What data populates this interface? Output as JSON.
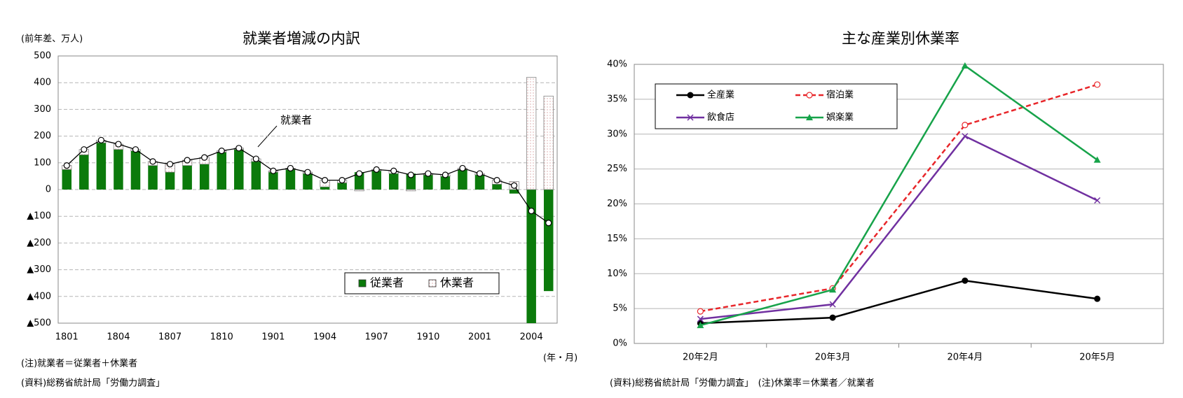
{
  "chart_data": [
    {
      "type": "bar",
      "title": "就業者増減の内訳",
      "ylabel": "(前年差、万人)",
      "xlabel": "(年・月)",
      "notes": [
        "(注)就業者＝従業者＋休業者",
        "(資料)総務省統計局「労働力調査」"
      ],
      "categories": [
        "1801",
        null,
        null,
        "1804",
        null,
        null,
        "1807",
        null,
        null,
        "1810",
        null,
        null,
        "1901",
        null,
        null,
        "1904",
        null,
        null,
        "1907",
        null,
        null,
        "1910",
        null,
        null,
        "2001",
        null,
        null,
        "2004",
        null
      ],
      "series": [
        {
          "name": "従業者",
          "color": "#0b7a0b",
          "values": [
            75,
            130,
            175,
            150,
            145,
            90,
            65,
            90,
            95,
            140,
            150,
            105,
            65,
            75,
            60,
            10,
            25,
            65,
            70,
            60,
            60,
            55,
            50,
            75,
            55,
            20,
            -15,
            -500,
            -380
          ]
        },
        {
          "name": "休業者",
          "color": "#ffffff",
          "pattern": "dotted",
          "values": [
            15,
            20,
            10,
            20,
            5,
            15,
            30,
            20,
            25,
            5,
            5,
            10,
            5,
            5,
            5,
            25,
            10,
            -5,
            5,
            10,
            -5,
            5,
            5,
            5,
            5,
            15,
            30,
            420,
            350
          ]
        },
        {
          "name": "就業者",
          "type": "line",
          "color": "#000000",
          "values": [
            90,
            150,
            185,
            170,
            150,
            105,
            95,
            110,
            120,
            145,
            155,
            115,
            70,
            80,
            65,
            35,
            35,
            60,
            75,
            70,
            55,
            60,
            55,
            80,
            60,
            35,
            15,
            -80,
            -125
          ]
        }
      ],
      "ylim": [
        -500,
        500
      ],
      "yticks": [
        {
          "value": -500,
          "label": "▲500"
        },
        {
          "value": -400,
          "label": "▲400"
        },
        {
          "value": -300,
          "label": "▲300"
        },
        {
          "value": -200,
          "label": "▲200"
        },
        {
          "value": -100,
          "label": "▲100"
        },
        0,
        100,
        200,
        300,
        400,
        500
      ],
      "grid": true,
      "legend": "lower right"
    },
    {
      "type": "line",
      "title": "主な産業別休業率",
      "notes": [
        "(資料)総務省統計局「労働力調査」　(注)休業率＝休業者／就業者"
      ],
      "categories": [
        "20年2月",
        "20年3月",
        "20年4月",
        "20年5月"
      ],
      "series": [
        {
          "name": "全産業",
          "color": "#000000",
          "marker": "circle",
          "values": [
            2.9,
            3.7,
            9.0,
            6.4
          ]
        },
        {
          "name": "宿泊業",
          "color": "#e8262a",
          "marker": "circle-open",
          "dash": "dashed",
          "values": [
            4.6,
            7.9,
            31.3,
            37.1
          ]
        },
        {
          "name": "飲食店",
          "color": "#7030a0",
          "marker": "x",
          "values": [
            3.5,
            5.6,
            29.7,
            20.5
          ]
        },
        {
          "name": "娯楽業",
          "color": "#17a34a",
          "marker": "triangle",
          "values": [
            2.6,
            7.7,
            39.8,
            26.3
          ]
        }
      ],
      "ylim": [
        0,
        40
      ],
      "yticks": [
        {
          "value": 0,
          "label": "0%"
        },
        {
          "value": 5,
          "label": "5%"
        },
        {
          "value": 10,
          "label": "10%"
        },
        {
          "value": 15,
          "label": "15%"
        },
        {
          "value": 20,
          "label": "20%"
        },
        {
          "value": 25,
          "label": "25%"
        },
        {
          "value": 30,
          "label": "30%"
        },
        {
          "value": 35,
          "label": "35%"
        },
        {
          "value": 40,
          "label": "40%"
        }
      ],
      "grid": true,
      "legend": "upper left"
    }
  ]
}
